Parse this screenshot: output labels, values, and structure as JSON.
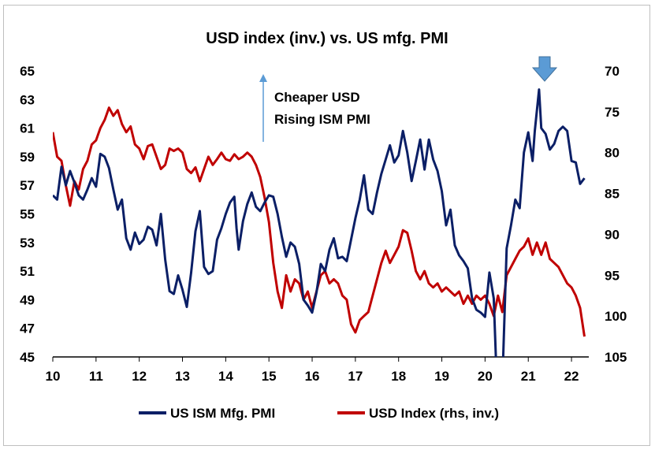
{
  "chart_data": {
    "type": "line",
    "title": "USD index (inv.) vs. US mfg. PMI",
    "xlabel": "",
    "x_ticks": [
      "10",
      "11",
      "12",
      "13",
      "14",
      "15",
      "16",
      "17",
      "18",
      "19",
      "20",
      "21",
      "22"
    ],
    "xlim": [
      10,
      22.4
    ],
    "y_left": {
      "lim": [
        45,
        65
      ],
      "ticks": [
        "65",
        "63",
        "61",
        "59",
        "57",
        "55",
        "53",
        "51",
        "49",
        "47",
        "45"
      ]
    },
    "y_right": {
      "lim": [
        70,
        105
      ],
      "inverted": true,
      "ticks": [
        "70",
        "75",
        "80",
        "85",
        "90",
        "95",
        "100",
        "105"
      ]
    },
    "grid": false,
    "legend_position": "bottom",
    "annotation": {
      "lines": [
        "Cheaper USD",
        "Rising ISM PMI"
      ],
      "arrow": "up"
    },
    "highlight_arrow": {
      "x": 21.3,
      "direction": "down",
      "color": "#5b9bd5"
    },
    "series": [
      {
        "name": "US ISM Mfg. PMI",
        "axis": "left",
        "color": "#0b1f66",
        "points": [
          [
            10.0,
            56.3
          ],
          [
            10.1,
            56.0
          ],
          [
            10.2,
            58.3
          ],
          [
            10.3,
            57.0
          ],
          [
            10.4,
            58.0
          ],
          [
            10.5,
            57.2
          ],
          [
            10.6,
            56.3
          ],
          [
            10.7,
            56.0
          ],
          [
            10.8,
            56.7
          ],
          [
            10.9,
            57.5
          ],
          [
            11.0,
            56.9
          ],
          [
            11.1,
            59.2
          ],
          [
            11.2,
            59.0
          ],
          [
            11.3,
            58.2
          ],
          [
            11.4,
            56.7
          ],
          [
            11.5,
            55.3
          ],
          [
            11.6,
            56.0
          ],
          [
            11.7,
            53.3
          ],
          [
            11.8,
            52.5
          ],
          [
            11.9,
            53.7
          ],
          [
            12.0,
            52.9
          ],
          [
            12.1,
            53.2
          ],
          [
            12.2,
            54.1
          ],
          [
            12.3,
            53.9
          ],
          [
            12.4,
            52.8
          ],
          [
            12.5,
            55.0
          ],
          [
            12.6,
            51.8
          ],
          [
            12.7,
            49.6
          ],
          [
            12.8,
            49.4
          ],
          [
            12.9,
            50.7
          ],
          [
            13.0,
            49.7
          ],
          [
            13.1,
            48.5
          ],
          [
            13.2,
            50.9
          ],
          [
            13.3,
            53.8
          ],
          [
            13.4,
            55.2
          ],
          [
            13.5,
            51.3
          ],
          [
            13.6,
            50.8
          ],
          [
            13.7,
            51.0
          ],
          [
            13.8,
            53.2
          ],
          [
            13.9,
            54.0
          ],
          [
            14.0,
            55.0
          ],
          [
            14.1,
            55.8
          ],
          [
            14.2,
            56.2
          ],
          [
            14.25,
            54.0
          ],
          [
            14.3,
            52.5
          ],
          [
            14.4,
            54.5
          ],
          [
            14.5,
            55.7
          ],
          [
            14.6,
            56.5
          ],
          [
            14.7,
            55.5
          ],
          [
            14.8,
            55.2
          ],
          [
            14.9,
            55.8
          ],
          [
            15.0,
            56.3
          ],
          [
            15.1,
            56.2
          ],
          [
            15.2,
            55.0
          ],
          [
            15.3,
            53.4
          ],
          [
            15.4,
            52.0
          ],
          [
            15.5,
            53.0
          ],
          [
            15.6,
            52.7
          ],
          [
            15.7,
            51.5
          ],
          [
            15.8,
            49.0
          ],
          [
            15.9,
            48.6
          ],
          [
            16.0,
            48.1
          ],
          [
            16.1,
            49.5
          ],
          [
            16.2,
            51.5
          ],
          [
            16.3,
            51.0
          ],
          [
            16.4,
            52.5
          ],
          [
            16.5,
            53.3
          ],
          [
            16.6,
            51.9
          ],
          [
            16.7,
            52.0
          ],
          [
            16.8,
            51.7
          ],
          [
            16.9,
            53.2
          ],
          [
            17.0,
            54.7
          ],
          [
            17.1,
            56.0
          ],
          [
            17.2,
            57.7
          ],
          [
            17.3,
            55.3
          ],
          [
            17.4,
            55.0
          ],
          [
            17.5,
            56.5
          ],
          [
            17.6,
            57.8
          ],
          [
            17.7,
            58.8
          ],
          [
            17.8,
            59.8
          ],
          [
            17.9,
            58.6
          ],
          [
            18.0,
            59.1
          ],
          [
            18.1,
            60.8
          ],
          [
            18.2,
            59.3
          ],
          [
            18.3,
            57.3
          ],
          [
            18.4,
            58.7
          ],
          [
            18.5,
            60.2
          ],
          [
            18.6,
            58.1
          ],
          [
            18.7,
            60.2
          ],
          [
            18.8,
            58.8
          ],
          [
            18.9,
            58.0
          ],
          [
            19.0,
            56.6
          ],
          [
            19.1,
            54.2
          ],
          [
            19.2,
            55.3
          ],
          [
            19.3,
            52.8
          ],
          [
            19.4,
            52.1
          ],
          [
            19.5,
            51.7
          ],
          [
            19.6,
            51.2
          ],
          [
            19.7,
            49.1
          ],
          [
            19.8,
            48.3
          ],
          [
            19.9,
            48.1
          ],
          [
            20.0,
            47.8
          ],
          [
            20.1,
            50.9
          ],
          [
            20.2,
            49.1
          ],
          [
            20.25,
            45.0
          ],
          [
            20.3,
            41.5
          ],
          [
            20.4,
            43.1
          ],
          [
            20.5,
            52.6
          ],
          [
            20.6,
            54.2
          ],
          [
            20.7,
            56.0
          ],
          [
            20.8,
            55.4
          ],
          [
            20.9,
            59.3
          ],
          [
            21.0,
            60.7
          ],
          [
            21.1,
            58.7
          ],
          [
            21.15,
            60.8
          ],
          [
            21.25,
            63.7
          ],
          [
            21.3,
            61.0
          ],
          [
            21.4,
            60.6
          ],
          [
            21.5,
            59.5
          ],
          [
            21.6,
            59.9
          ],
          [
            21.7,
            60.8
          ],
          [
            21.8,
            61.1
          ],
          [
            21.9,
            60.8
          ],
          [
            22.0,
            58.7
          ],
          [
            22.1,
            58.6
          ],
          [
            22.2,
            57.1
          ],
          [
            22.3,
            57.5
          ]
        ]
      },
      {
        "name": "USD Index (rhs, inv.)",
        "axis": "right",
        "color": "#c00000",
        "points": [
          [
            10.0,
            77.5
          ],
          [
            10.1,
            80.5
          ],
          [
            10.2,
            81.0
          ],
          [
            10.3,
            84.0
          ],
          [
            10.4,
            86.5
          ],
          [
            10.5,
            83.5
          ],
          [
            10.6,
            84.5
          ],
          [
            10.7,
            82.0
          ],
          [
            10.8,
            81.0
          ],
          [
            10.9,
            79.0
          ],
          [
            11.0,
            78.5
          ],
          [
            11.1,
            77.0
          ],
          [
            11.2,
            76.0
          ],
          [
            11.3,
            74.5
          ],
          [
            11.4,
            75.5
          ],
          [
            11.5,
            74.8
          ],
          [
            11.6,
            76.5
          ],
          [
            11.7,
            77.5
          ],
          [
            11.8,
            76.8
          ],
          [
            11.9,
            79.0
          ],
          [
            12.0,
            79.5
          ],
          [
            12.1,
            80.8
          ],
          [
            12.2,
            79.2
          ],
          [
            12.3,
            79.0
          ],
          [
            12.4,
            80.5
          ],
          [
            12.5,
            82.0
          ],
          [
            12.6,
            81.5
          ],
          [
            12.7,
            79.5
          ],
          [
            12.8,
            79.8
          ],
          [
            12.9,
            79.5
          ],
          [
            13.0,
            80.0
          ],
          [
            13.1,
            82.0
          ],
          [
            13.2,
            82.5
          ],
          [
            13.3,
            81.8
          ],
          [
            13.4,
            83.5
          ],
          [
            13.5,
            82.0
          ],
          [
            13.6,
            80.5
          ],
          [
            13.7,
            81.5
          ],
          [
            13.8,
            80.8
          ],
          [
            13.9,
            80.0
          ],
          [
            14.0,
            80.8
          ],
          [
            14.1,
            81.0
          ],
          [
            14.2,
            80.2
          ],
          [
            14.3,
            80.8
          ],
          [
            14.4,
            80.5
          ],
          [
            14.5,
            80.0
          ],
          [
            14.6,
            80.5
          ],
          [
            14.7,
            81.5
          ],
          [
            14.8,
            83.0
          ],
          [
            14.9,
            85.5
          ],
          [
            15.0,
            88.5
          ],
          [
            15.1,
            93.5
          ],
          [
            15.2,
            97.0
          ],
          [
            15.3,
            99.0
          ],
          [
            15.4,
            95.0
          ],
          [
            15.5,
            97.0
          ],
          [
            15.6,
            95.5
          ],
          [
            15.7,
            96.0
          ],
          [
            15.8,
            98.0
          ],
          [
            15.9,
            97.0
          ],
          [
            16.0,
            99.0
          ],
          [
            16.1,
            97.0
          ],
          [
            16.2,
            95.0
          ],
          [
            16.3,
            94.5
          ],
          [
            16.4,
            96.0
          ],
          [
            16.5,
            95.5
          ],
          [
            16.6,
            96.0
          ],
          [
            16.7,
            97.5
          ],
          [
            16.8,
            98.0
          ],
          [
            16.9,
            101.0
          ],
          [
            17.0,
            102.0
          ],
          [
            17.1,
            100.5
          ],
          [
            17.2,
            100.0
          ],
          [
            17.3,
            99.5
          ],
          [
            17.4,
            97.5
          ],
          [
            17.5,
            95.5
          ],
          [
            17.6,
            93.5
          ],
          [
            17.7,
            92.0
          ],
          [
            17.8,
            93.5
          ],
          [
            17.9,
            92.5
          ],
          [
            18.0,
            91.5
          ],
          [
            18.1,
            89.5
          ],
          [
            18.2,
            89.8
          ],
          [
            18.3,
            92.0
          ],
          [
            18.4,
            94.5
          ],
          [
            18.5,
            95.5
          ],
          [
            18.6,
            94.5
          ],
          [
            18.7,
            96.0
          ],
          [
            18.8,
            96.5
          ],
          [
            18.9,
            96.0
          ],
          [
            19.0,
            97.0
          ],
          [
            19.1,
            96.5
          ],
          [
            19.2,
            97.0
          ],
          [
            19.3,
            97.5
          ],
          [
            19.4,
            97.0
          ],
          [
            19.5,
            98.5
          ],
          [
            19.6,
            97.5
          ],
          [
            19.7,
            98.5
          ],
          [
            19.8,
            97.5
          ],
          [
            19.9,
            98.0
          ],
          [
            20.0,
            97.5
          ],
          [
            20.1,
            98.5
          ],
          [
            20.2,
            100.0
          ],
          [
            20.3,
            97.5
          ],
          [
            20.4,
            99.5
          ],
          [
            20.5,
            95.0
          ],
          [
            20.6,
            94.0
          ],
          [
            20.7,
            93.0
          ],
          [
            20.8,
            92.0
          ],
          [
            20.9,
            91.5
          ],
          [
            21.0,
            90.5
          ],
          [
            21.1,
            92.5
          ],
          [
            21.2,
            91.0
          ],
          [
            21.3,
            92.5
          ],
          [
            21.4,
            91.0
          ],
          [
            21.5,
            93.0
          ],
          [
            21.6,
            93.5
          ],
          [
            21.7,
            94.0
          ],
          [
            21.8,
            95.0
          ],
          [
            21.9,
            96.0
          ],
          [
            22.0,
            96.5
          ],
          [
            22.1,
            97.5
          ],
          [
            22.2,
            99.0
          ],
          [
            22.3,
            102.5
          ]
        ]
      }
    ]
  }
}
